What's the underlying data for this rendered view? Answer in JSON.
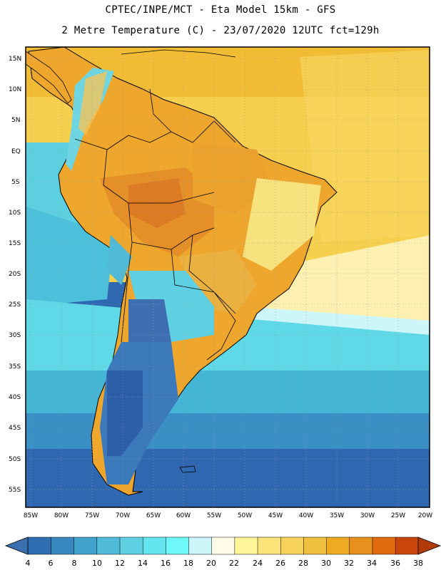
{
  "header": {
    "line1": "CPTEC/INPE/MCT -  Eta Model 15km - GFS",
    "line2": "2 Metre Temperature (C) - 23/07/2020 12UTC fct=129h"
  },
  "map": {
    "lat_labels": [
      "15N",
      "10N",
      "5N",
      "EQ",
      "5S",
      "10S",
      "15S",
      "20S",
      "25S",
      "30S",
      "35S",
      "40S",
      "45S",
      "50S",
      "55S"
    ],
    "lon_labels": [
      "85W",
      "80W",
      "75W",
      "70W",
      "65W",
      "60W",
      "55W",
      "50W",
      "45W",
      "40W",
      "35W",
      "30W",
      "25W",
      "20W"
    ]
  },
  "colorbar": {
    "ticks": [
      "4",
      "6",
      "8",
      "10",
      "12",
      "14",
      "16",
      "18",
      "20",
      "22",
      "24",
      "26",
      "28",
      "30",
      "32",
      "34",
      "36",
      "38"
    ],
    "colors": [
      "#3a6fb0",
      "#2f6eb0",
      "#3a88c0",
      "#40a3cc",
      "#50bcd8",
      "#5fd0e2",
      "#64e4ee",
      "#6ef8fa",
      "#cdf6fb",
      "#fffbe6",
      "#fff49a",
      "#fce37a",
      "#f6d25c",
      "#efbf3e",
      "#eeaa22",
      "#e8901e",
      "#df6a10",
      "#c9460a",
      "#b03a08"
    ],
    "under_color": "#3a6fb0",
    "over_color": "#b03a08"
  }
}
